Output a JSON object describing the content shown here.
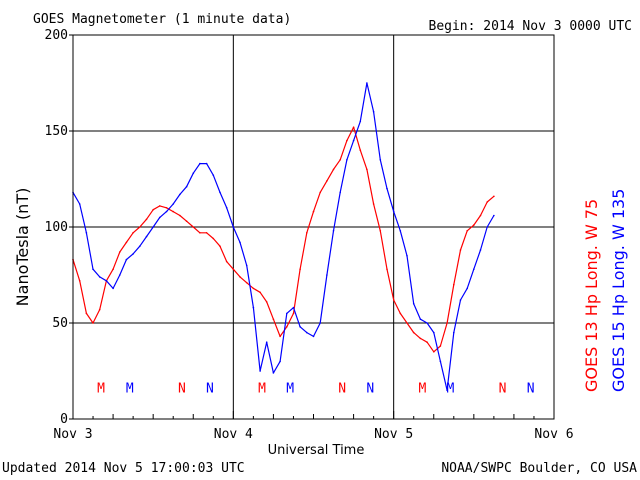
{
  "header": {
    "title": "GOES Magnetometer (1 minute data)",
    "begin": "Begin:  2014 Nov 3 0000 UTC"
  },
  "footer": {
    "updated": "Updated 2014 Nov  5 17:00:03 UTC",
    "source": "NOAA/SWPC Boulder, CO USA"
  },
  "chart_data": {
    "type": "line",
    "title": "GOES Magnetometer (1 minute data)",
    "xlabel": "Universal Time",
    "ylabel": "NanoTesla (nT)",
    "xlim": [
      0,
      72
    ],
    "xunit": "hours since 2014 Nov 3 0000 UTC",
    "ylim": [
      0,
      200
    ],
    "yticks": [
      0,
      50,
      100,
      150,
      200
    ],
    "xticks": [
      {
        "t": 0,
        "label": "Nov 3"
      },
      {
        "t": 24,
        "label": "Nov 4"
      },
      {
        "t": 48,
        "label": "Nov 5"
      },
      {
        "t": 72,
        "label": "Nov 6"
      }
    ],
    "grid": true,
    "legend_position": "right, vertical",
    "series": [
      {
        "name": "GOES 13 Hp  Long. W 75",
        "color": "#ff0000",
        "points": [
          [
            0,
            83
          ],
          [
            1,
            72
          ],
          [
            2,
            55
          ],
          [
            3,
            50
          ],
          [
            4,
            57
          ],
          [
            5,
            72
          ],
          [
            6,
            78
          ],
          [
            7,
            87
          ],
          [
            8,
            92
          ],
          [
            9,
            97
          ],
          [
            10,
            100
          ],
          [
            11,
            104
          ],
          [
            12,
            109
          ],
          [
            13,
            111
          ],
          [
            14,
            110
          ],
          [
            15,
            108
          ],
          [
            16,
            106
          ],
          [
            17,
            103
          ],
          [
            18,
            100
          ],
          [
            19,
            97
          ],
          [
            20,
            97
          ],
          [
            21,
            94
          ],
          [
            22,
            90
          ],
          [
            23,
            82
          ],
          [
            24,
            78
          ],
          [
            25,
            74
          ],
          [
            26,
            71
          ],
          [
            27,
            68
          ],
          [
            28,
            66
          ],
          [
            29,
            61
          ],
          [
            30,
            52
          ],
          [
            31,
            43
          ],
          [
            32,
            48
          ],
          [
            33,
            55
          ],
          [
            34,
            78
          ],
          [
            35,
            97
          ],
          [
            36,
            108
          ],
          [
            37,
            118
          ],
          [
            38,
            124
          ],
          [
            39,
            130
          ],
          [
            40,
            135
          ],
          [
            41,
            145
          ],
          [
            42,
            152
          ],
          [
            43,
            140
          ],
          [
            44,
            130
          ],
          [
            45,
            112
          ],
          [
            46,
            98
          ],
          [
            47,
            78
          ],
          [
            48,
            62
          ],
          [
            49,
            55
          ],
          [
            50,
            50
          ],
          [
            51,
            45
          ],
          [
            52,
            42
          ],
          [
            53,
            40
          ],
          [
            54,
            35
          ],
          [
            55,
            38
          ],
          [
            56,
            50
          ],
          [
            57,
            70
          ],
          [
            58,
            88
          ],
          [
            59,
            98
          ],
          [
            60,
            101
          ],
          [
            61,
            106
          ],
          [
            62,
            113
          ],
          [
            63,
            116
          ]
        ]
      },
      {
        "name": "GOES 15 Hp  Long. W 135",
        "color": "#0000ff",
        "points": [
          [
            0,
            118
          ],
          [
            1,
            112
          ],
          [
            2,
            97
          ],
          [
            3,
            78
          ],
          [
            4,
            74
          ],
          [
            5,
            72
          ],
          [
            6,
            68
          ],
          [
            7,
            75
          ],
          [
            8,
            83
          ],
          [
            9,
            86
          ],
          [
            10,
            90
          ],
          [
            11,
            95
          ],
          [
            12,
            100
          ],
          [
            13,
            105
          ],
          [
            14,
            108
          ],
          [
            15,
            112
          ],
          [
            16,
            117
          ],
          [
            17,
            121
          ],
          [
            18,
            128
          ],
          [
            19,
            133
          ],
          [
            20,
            133
          ],
          [
            21,
            127
          ],
          [
            22,
            118
          ],
          [
            23,
            110
          ],
          [
            24,
            100
          ],
          [
            25,
            92
          ],
          [
            26,
            80
          ],
          [
            27,
            58
          ],
          [
            28,
            25
          ],
          [
            29,
            40
          ],
          [
            30,
            24
          ],
          [
            31,
            30
          ],
          [
            32,
            55
          ],
          [
            33,
            58
          ],
          [
            34,
            48
          ],
          [
            35,
            45
          ],
          [
            36,
            43
          ],
          [
            37,
            50
          ],
          [
            38,
            75
          ],
          [
            39,
            98
          ],
          [
            40,
            118
          ],
          [
            41,
            135
          ],
          [
            42,
            145
          ],
          [
            43,
            155
          ],
          [
            44,
            175
          ],
          [
            45,
            160
          ],
          [
            46,
            135
          ],
          [
            47,
            120
          ],
          [
            48,
            108
          ],
          [
            49,
            98
          ],
          [
            50,
            85
          ],
          [
            51,
            60
          ],
          [
            52,
            52
          ],
          [
            53,
            50
          ],
          [
            54,
            45
          ],
          [
            55,
            30
          ],
          [
            56,
            15
          ],
          [
            57,
            45
          ],
          [
            58,
            62
          ],
          [
            59,
            68
          ],
          [
            60,
            78
          ],
          [
            61,
            88
          ],
          [
            62,
            100
          ],
          [
            63,
            106
          ]
        ]
      }
    ],
    "markers": [
      {
        "t": 4.2,
        "label": "M",
        "color": "#ff0000"
      },
      {
        "t": 8.5,
        "label": "M",
        "color": "#0000ff"
      },
      {
        "t": 16.3,
        "label": "N",
        "color": "#ff0000"
      },
      {
        "t": 20.5,
        "label": "N",
        "color": "#0000ff"
      },
      {
        "t": 28.3,
        "label": "M",
        "color": "#ff0000"
      },
      {
        "t": 32.5,
        "label": "M",
        "color": "#0000ff"
      },
      {
        "t": 40.3,
        "label": "N",
        "color": "#ff0000"
      },
      {
        "t": 44.5,
        "label": "N",
        "color": "#0000ff"
      },
      {
        "t": 52.3,
        "label": "M",
        "color": "#ff0000"
      },
      {
        "t": 56.5,
        "label": "M",
        "color": "#0000ff"
      },
      {
        "t": 64.3,
        "label": "N",
        "color": "#ff0000"
      },
      {
        "t": 68.5,
        "label": "N",
        "color": "#0000ff"
      }
    ],
    "marker_level": 16
  }
}
